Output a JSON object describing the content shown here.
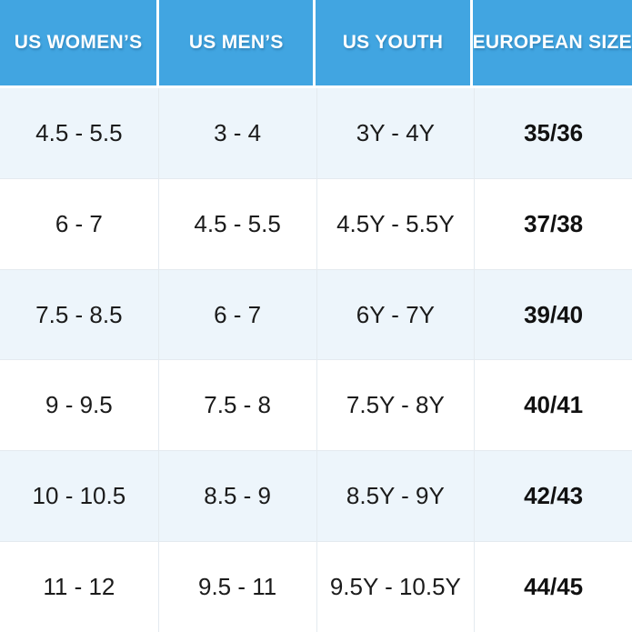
{
  "chart_data": {
    "type": "table",
    "columns": [
      "US WOMEN’S",
      "US MEN’S",
      "US YOUTH",
      "EUROPEAN SIZE"
    ],
    "rows": [
      [
        "4.5 - 5.5",
        "3 - 4",
        "3Y - 4Y",
        "35/36"
      ],
      [
        "6 - 7",
        "4.5 - 5.5",
        "4.5Y - 5.5Y",
        "37/38"
      ],
      [
        "7.5 - 8.5",
        "6 - 7",
        "6Y - 7Y",
        "39/40"
      ],
      [
        "9 - 9.5",
        "7.5 - 8",
        "7.5Y - 8Y",
        "40/41"
      ],
      [
        "10 - 10.5",
        "8.5 - 9",
        "8.5Y - 9Y",
        "42/43"
      ],
      [
        "11 - 12",
        "9.5 - 11",
        "9.5Y - 10.5Y",
        "44/45"
      ]
    ],
    "title": "",
    "legend": "none",
    "grid": "on"
  },
  "colors": {
    "header_bg": "#41A5E1",
    "header_text": "#FFFFFF",
    "row_alt_bg": "#EDF5FB",
    "row_bg": "#FFFFFF",
    "cell_text": "#1B1B1B",
    "euro_text": "#111111",
    "grid_line": "#E4EAEF"
  }
}
